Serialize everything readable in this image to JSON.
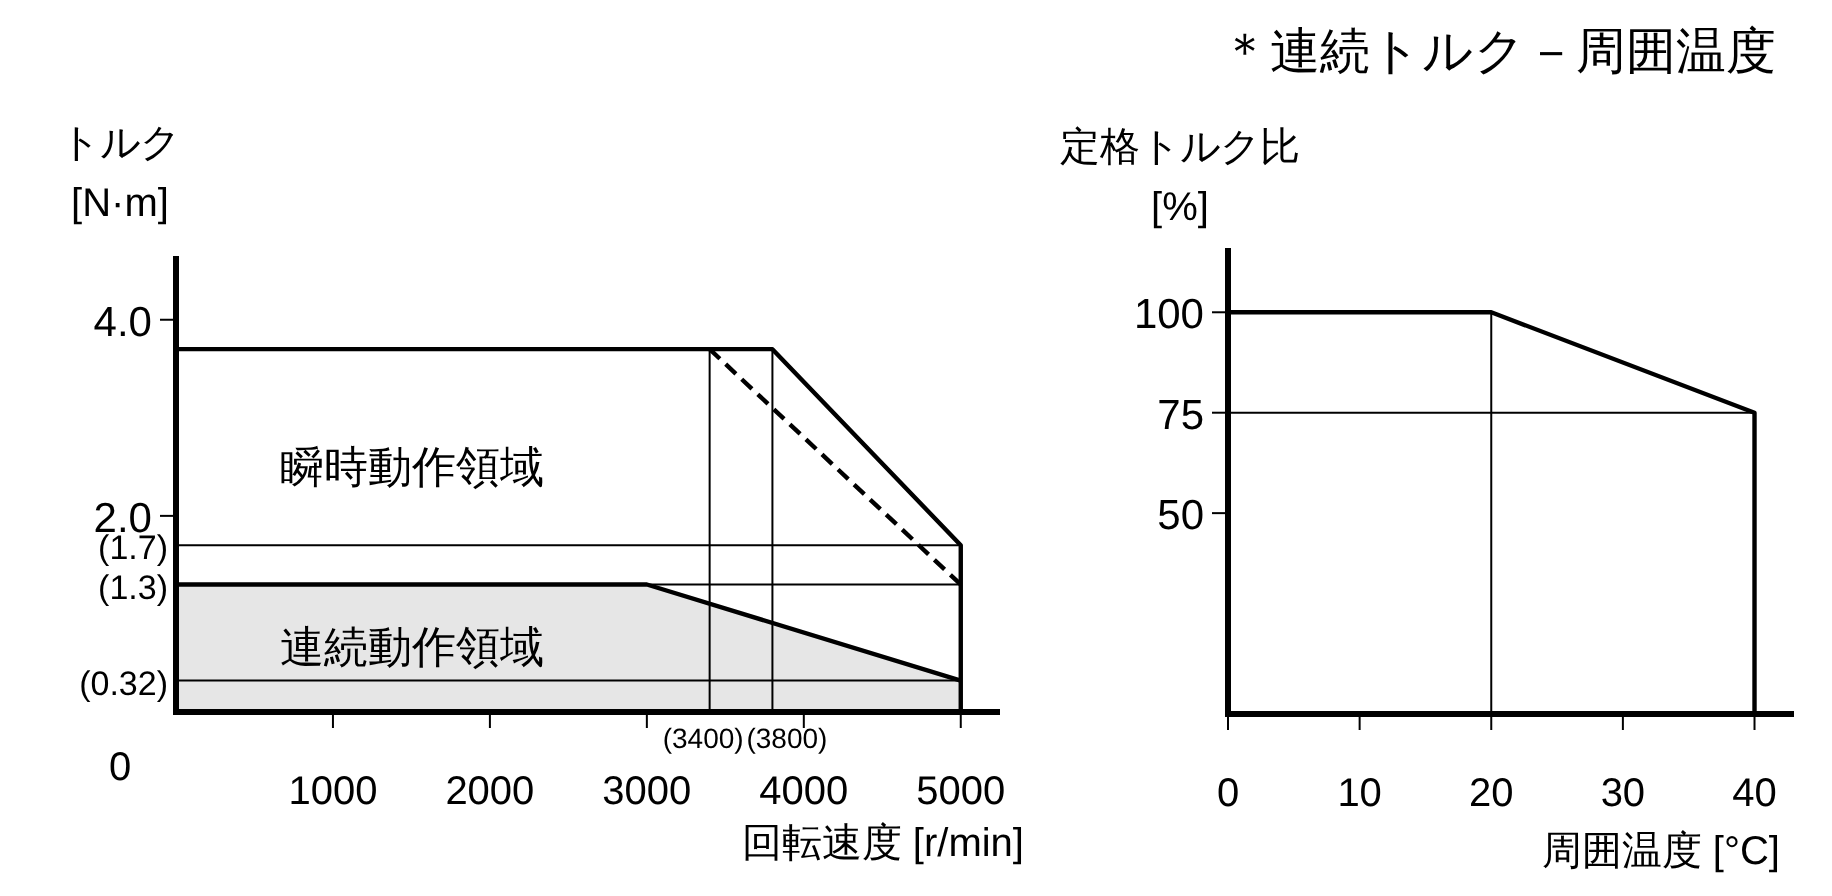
{
  "chart_data": [
    {
      "type": "line",
      "xlabel": "回転速度 [r/min]",
      "ylabel": "トルク\n[N·m]",
      "xlim": [
        0,
        5250
      ],
      "ylim": [
        0,
        4.65
      ],
      "xticks": [
        1000,
        2000,
        3000,
        4000,
        5000
      ],
      "yticks": [
        {
          "value": 4,
          "label": "4.0"
        },
        {
          "value": 2,
          "label": "2.0"
        }
      ],
      "series": [
        {
          "type": "area",
          "color": "#e6e6e6",
          "x": [
            0,
            3000,
            5000
          ],
          "values": [
            1.3,
            1.3,
            0.32
          ]
        },
        {
          "type": "line",
          "color": "#000000",
          "x": [
            0,
            3800,
            5000,
            5000
          ],
          "values": [
            3.7,
            3.7,
            1.7,
            0
          ]
        },
        {
          "type": "line",
          "color": "#000000",
          "line_style": "dashed",
          "x": [
            3400,
            5000
          ],
          "values": [
            3.7,
            1.3
          ]
        }
      ],
      "ref_lines": [
        {
          "axis": "y",
          "value": 1.7,
          "label": "(1.7)"
        },
        {
          "axis": "y",
          "value": 1.3,
          "label": "(1.3)"
        },
        {
          "axis": "y",
          "value": 0.32,
          "label": "(0.32)"
        },
        {
          "axis": "x",
          "value": 3400,
          "label": "(3400)"
        },
        {
          "axis": "x",
          "value": 3800,
          "label": "(3800)"
        }
      ],
      "annotations": [
        "0",
        "瞬時動作領域",
        "連続動作領域"
      ],
      "grid": false
    },
    {
      "type": "line",
      "title": "＊連続トルク－周囲温度",
      "xlabel": "周囲温度 [°C]",
      "ylabel": "定格トルク比\n[%]",
      "xlim": [
        0,
        43
      ],
      "ylim": [
        0,
        116
      ],
      "xticks": [
        0,
        10,
        20,
        30,
        40
      ],
      "yticks": [
        50,
        75,
        100
      ],
      "series": [
        {
          "type": "line",
          "color": "#000000",
          "x": [
            0,
            20,
            40,
            40
          ],
          "values": [
            100,
            100,
            75,
            0
          ]
        }
      ],
      "ref_lines": [
        {
          "axis": "y",
          "value": 75
        },
        {
          "axis": "x",
          "value": 20
        }
      ],
      "grid": false
    }
  ]
}
